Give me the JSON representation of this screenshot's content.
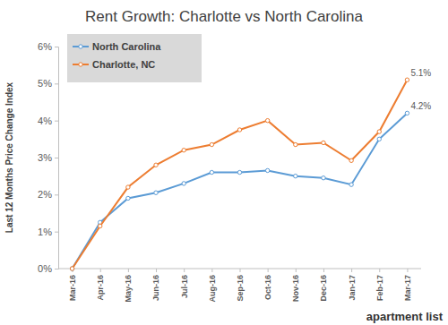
{
  "chart_data": {
    "type": "line",
    "title": "Rent Growth: Charlotte vs North Carolina",
    "y_label": "Last 12 Months Price Change Index",
    "categories": [
      "Mar-16",
      "Apr-16",
      "May-16",
      "Jun-16",
      "Jul-16",
      "Aug-16",
      "Sep-16",
      "Oct-16",
      "Nov-16",
      "Dec-16",
      "Jan-17",
      "Feb-17",
      "Mar-17"
    ],
    "series": [
      {
        "name": "North Carolina",
        "color": "#5b9bd5",
        "values": [
          0,
          1.25,
          1.9,
          2.05,
          2.3,
          2.6,
          2.6,
          2.65,
          2.5,
          2.45,
          2.27,
          3.5,
          4.2
        ],
        "value_labels": [
          null,
          null,
          null,
          null,
          null,
          null,
          null,
          null,
          null,
          null,
          null,
          null,
          "4.2%"
        ]
      },
      {
        "name": "Charlotte, NC",
        "color": "#ed7d31",
        "values": [
          0,
          1.15,
          2.2,
          2.8,
          3.2,
          3.35,
          3.75,
          4.0,
          3.35,
          3.4,
          2.92,
          3.7,
          5.1
        ],
        "value_labels": [
          null,
          null,
          null,
          null,
          null,
          null,
          null,
          null,
          null,
          null,
          null,
          null,
          "5.1%"
        ]
      }
    ],
    "ylim": [
      0,
      6
    ],
    "yticks": [
      {
        "value": 0,
        "label": "0%"
      },
      {
        "value": 1,
        "label": "1%"
      },
      {
        "value": 2,
        "label": "2%"
      },
      {
        "value": 3,
        "label": "3%"
      },
      {
        "value": 4,
        "label": "4%"
      },
      {
        "value": 5,
        "label": "5%"
      },
      {
        "value": 6,
        "label": "6%"
      }
    ],
    "grid": false,
    "legend": "upper left",
    "marker": "circle",
    "data_labels": true,
    "annotations": [
      "apartment list"
    ]
  }
}
